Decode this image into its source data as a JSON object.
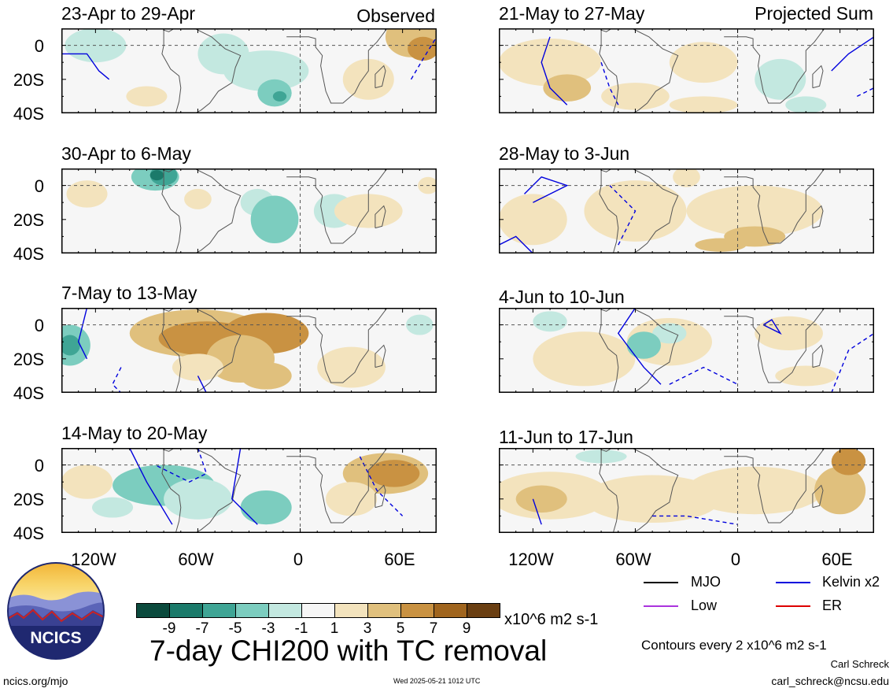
{
  "panels": [
    {
      "title": "23-Apr to 29-Apr",
      "corner": "Observed"
    },
    {
      "title": "21-May to 27-May",
      "corner": "Projected Sum"
    },
    {
      "title": "30-Apr to 6-May",
      "corner": ""
    },
    {
      "title": "28-May to 3-Jun",
      "corner": ""
    },
    {
      "title": "7-May to 13-May",
      "corner": ""
    },
    {
      "title": "4-Jun to 10-Jun",
      "corner": ""
    },
    {
      "title": "14-May to 20-May",
      "corner": ""
    },
    {
      "title": "11-Jun to 17-Jun",
      "corner": ""
    }
  ],
  "y_ticks": [
    "0",
    "20S",
    "40S"
  ],
  "x_ticks": [
    "120W",
    "60W",
    "0",
    "60E"
  ],
  "legend": {
    "mjo": "MJO",
    "kelvin": "Kelvin x2",
    "low": "Low",
    "er": "ER",
    "colors": {
      "mjo": "#000000",
      "kelvin": "#0000dd",
      "low": "#aa33dd",
      "er": "#dd0000"
    }
  },
  "colorbar": {
    "ticks": [
      "-9",
      "-7",
      "-5",
      "-3",
      "-1",
      "1",
      "3",
      "5",
      "7",
      "9"
    ],
    "units": "x10^6 m2 s-1",
    "colors": [
      "#0b4a3d",
      "#1b7a6a",
      "#3fa595",
      "#7ccdbf",
      "#c3e8e0",
      "#f6f6f6",
      "#f3e3bd",
      "#e0c07d",
      "#c99242",
      "#a0651e",
      "#6a3f12"
    ]
  },
  "main_title": "7-day CHI200 with TC removal",
  "contour_note": "Contours every 2 x10^6 m2 s-1",
  "author": "Carl Schreck",
  "email": "carl_schreck@ncsu.edu",
  "site": "ncics.org/mjo",
  "timestamp": "Wed 2025-05-21 1012 UTC",
  "logo_text": "NCICS",
  "chart_data": {
    "type": "heatmap",
    "title": "7-day CHI200 with TC removal",
    "units": "x10^6 m2 s-1",
    "ylim": [
      "40S",
      "10N"
    ],
    "xlim": [
      "140W",
      "80E"
    ],
    "y_ticks": [
      "0",
      "20S",
      "40S"
    ],
    "x_ticks": [
      "120W",
      "60W",
      "0",
      "60E"
    ],
    "levels": [
      -9,
      -7,
      -5,
      -3,
      -1,
      1,
      3,
      5,
      7,
      9
    ],
    "columns": [
      "Observed",
      "Projected Sum"
    ],
    "panels": [
      "23-Apr to 29-Apr",
      "30-Apr to 6-May",
      "7-May to 13-May",
      "14-May to 20-May",
      "21-May to 27-May",
      "28-May to 3-Jun",
      "4-Jun to 10-Jun",
      "11-Jun to 17-Jun"
    ],
    "contour_series": [
      "MJO",
      "Kelvin x2",
      "Low",
      "ER"
    ],
    "contour_interval": 2,
    "grid": true
  }
}
